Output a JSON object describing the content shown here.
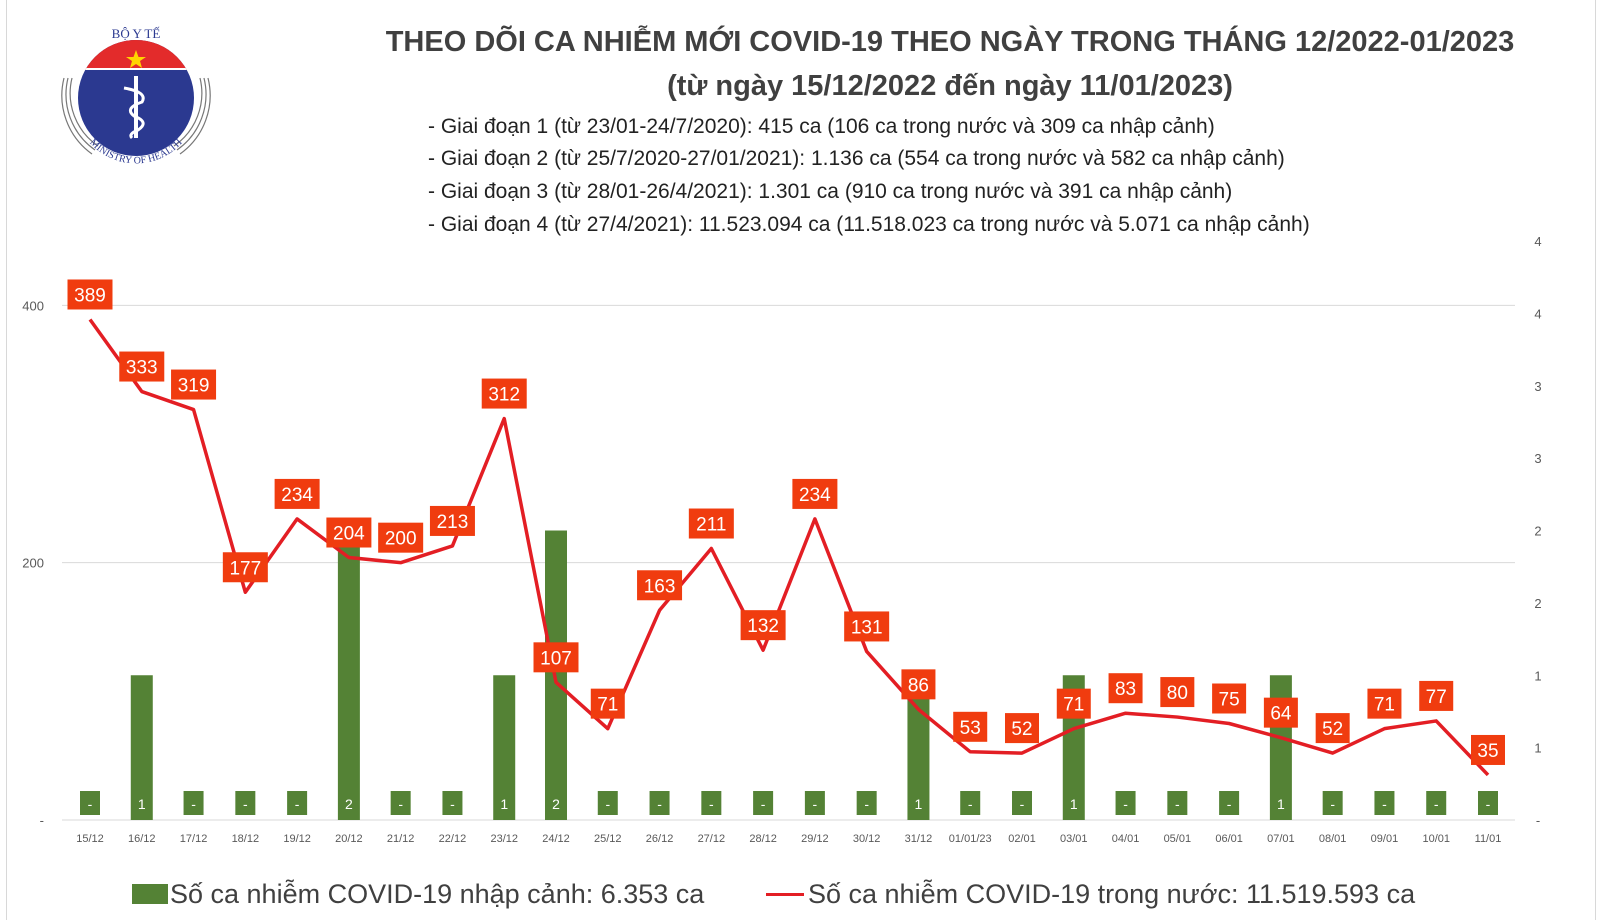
{
  "logo": {
    "top_text": "BỘ Y TẾ",
    "bottom_text": "MINISTRY OF HEALTH"
  },
  "title": "THEO DÕI CA NHIỄM MỚI COVID-19 THEO NGÀY TRONG THÁNG 12/2022-01/2023",
  "subtitle": "(từ ngày 15/12/2022 đến ngày 11/01/2023)",
  "phases": [
    "- Giai đoạn 1 (từ 23/01-24/7/2020): 415 ca (106 ca trong nước và 309 ca nhập cảnh)",
    "- Giai đoạn 2 (từ 25/7/2020-27/01/2021): 1.136 ca (554 ca trong nước và 582 ca nhập cảnh)",
    "- Giai đoạn 3 (từ 28/01-26/4/2021): 1.301 ca (910 ca trong nước và 391 ca nhập cảnh)",
    "- Giai đoạn 4 (từ 27/4/2021): 11.523.094 ca (11.518.023 ca trong nước và 5.071 ca nhập cảnh)"
  ],
  "chart_data": {
    "type": "bar+line",
    "categories": [
      "15/12",
      "16/12",
      "17/12",
      "18/12",
      "19/12",
      "20/12",
      "21/12",
      "22/12",
      "23/12",
      "24/12",
      "25/12",
      "26/12",
      "27/12",
      "28/12",
      "29/12",
      "30/12",
      "31/12",
      "01/01/23",
      "02/01",
      "03/01",
      "04/01",
      "05/01",
      "06/01",
      "07/01",
      "08/01",
      "09/01",
      "10/01",
      "11/01"
    ],
    "series": [
      {
        "name": "Số ca nhiễm COVID-19 nhập cảnh: 6.353 ca",
        "type": "bar",
        "axis": "right",
        "color": "#548235",
        "values": [
          0,
          1,
          0,
          0,
          0,
          2,
          0,
          0,
          1,
          2,
          0,
          0,
          0,
          0,
          0,
          0,
          1,
          0,
          0,
          1,
          0,
          0,
          0,
          1,
          0,
          0,
          0,
          0
        ]
      },
      {
        "name": "Số ca nhiễm COVID-19 trong nước: 11.519.593 ca",
        "type": "line",
        "axis": "left",
        "color": "#e31e24",
        "values": [
          389,
          333,
          319,
          177,
          234,
          204,
          200,
          213,
          312,
          107,
          71,
          163,
          211,
          132,
          234,
          131,
          86,
          53,
          52,
          71,
          83,
          80,
          75,
          64,
          52,
          71,
          77,
          35
        ]
      }
    ],
    "left_axis": {
      "ylim": [
        0,
        450
      ],
      "ticks": [
        "-",
        "200",
        "400"
      ],
      "tick_values": [
        0,
        200,
        400
      ],
      "grid": true
    },
    "right_axis": {
      "ylim": [
        0,
        4
      ],
      "ticks": [
        "-",
        "1",
        "1",
        "2",
        "2",
        "3",
        "3",
        "4",
        "4"
      ],
      "tick_values": [
        0,
        0.5,
        1,
        1.5,
        2,
        2.5,
        3,
        3.5,
        4
      ]
    },
    "zero_label": "-",
    "label_color": "#f03c0f",
    "legend_placement": "bottom"
  },
  "legend": {
    "bar_label": "Số ca nhiễm COVID-19 nhập cảnh: 6.353 ca",
    "line_label": "Số ca nhiễm COVID-19 trong nước: 11.519.593 ca"
  }
}
